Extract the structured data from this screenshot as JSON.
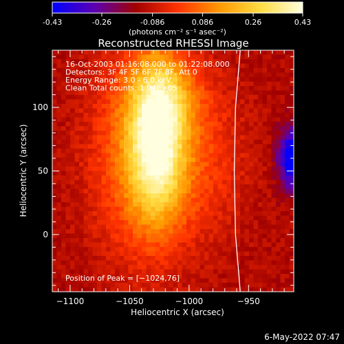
{
  "colorbar": {
    "ticks": [
      "-0.43",
      "-0.26",
      "-0.086",
      "0.086",
      "0.26",
      "0.43"
    ],
    "tick_values": [
      -0.43,
      -0.26,
      -0.086,
      0.086,
      0.26,
      0.43
    ],
    "range": [
      -0.43,
      0.43
    ],
    "unit_label": "(photons cm⁻² s⁻¹ asec⁻²)",
    "colormap": [
      "#0000ff",
      "#5b00b3",
      "#a00000",
      "#ff3300",
      "#ff9900",
      "#ffdd44",
      "#ffffe0"
    ]
  },
  "chart_data": {
    "type": "heatmap",
    "title": "Reconstructed RHESSI Image",
    "xlabel": "Heliocentric X (arcsec)",
    "ylabel": "Heliocentric Y (arcsec)",
    "xlim": [
      -1115,
      -912
    ],
    "ylim": [
      -45,
      145
    ],
    "xticks": [
      -1100,
      -1050,
      -1000,
      -950
    ],
    "xtick_labels": [
      "−1100",
      "−1050",
      "−1000",
      "−950"
    ],
    "yticks": [
      0,
      50,
      100
    ],
    "ytick_labels": [
      "0",
      "50",
      "100"
    ],
    "annotations": [
      "16-Oct-2003 01:16:08.000 to 01:22:08.000",
      "Detectors: 3F 4F 5F 6F 7F 8F, Att 0",
      "Energy Range: 3.0 - 6.0 keV",
      "Clean    Total counts: 1.94E+05"
    ],
    "peak_label": "Position of Peak = [−1024,76]",
    "peak_position": [
      -1024,
      76
    ],
    "sources": [
      {
        "x": -1027,
        "y": 75,
        "sx": 16,
        "sy": 42,
        "amp": 0.43
      },
      {
        "x": -1040,
        "y": 65,
        "sx": 30,
        "sy": 58,
        "amp": 0.22
      },
      {
        "x": -1015,
        "y": 110,
        "sx": 20,
        "sy": 20,
        "amp": 0.12
      },
      {
        "x": -985,
        "y": 60,
        "sx": 25,
        "sy": 45,
        "amp": 0.1
      }
    ],
    "negative_source": {
      "x": -913,
      "y": 60,
      "sx": 8,
      "sy": 16,
      "amp": -0.38
    },
    "background": -0.12,
    "limb_curve": {
      "x": [
        -957,
        -961,
        -962,
        -961,
        -957
      ],
      "y": [
        145,
        100,
        50,
        0,
        -45
      ]
    }
  },
  "footer": {
    "timestamp": "6-May-2022 07:47"
  }
}
